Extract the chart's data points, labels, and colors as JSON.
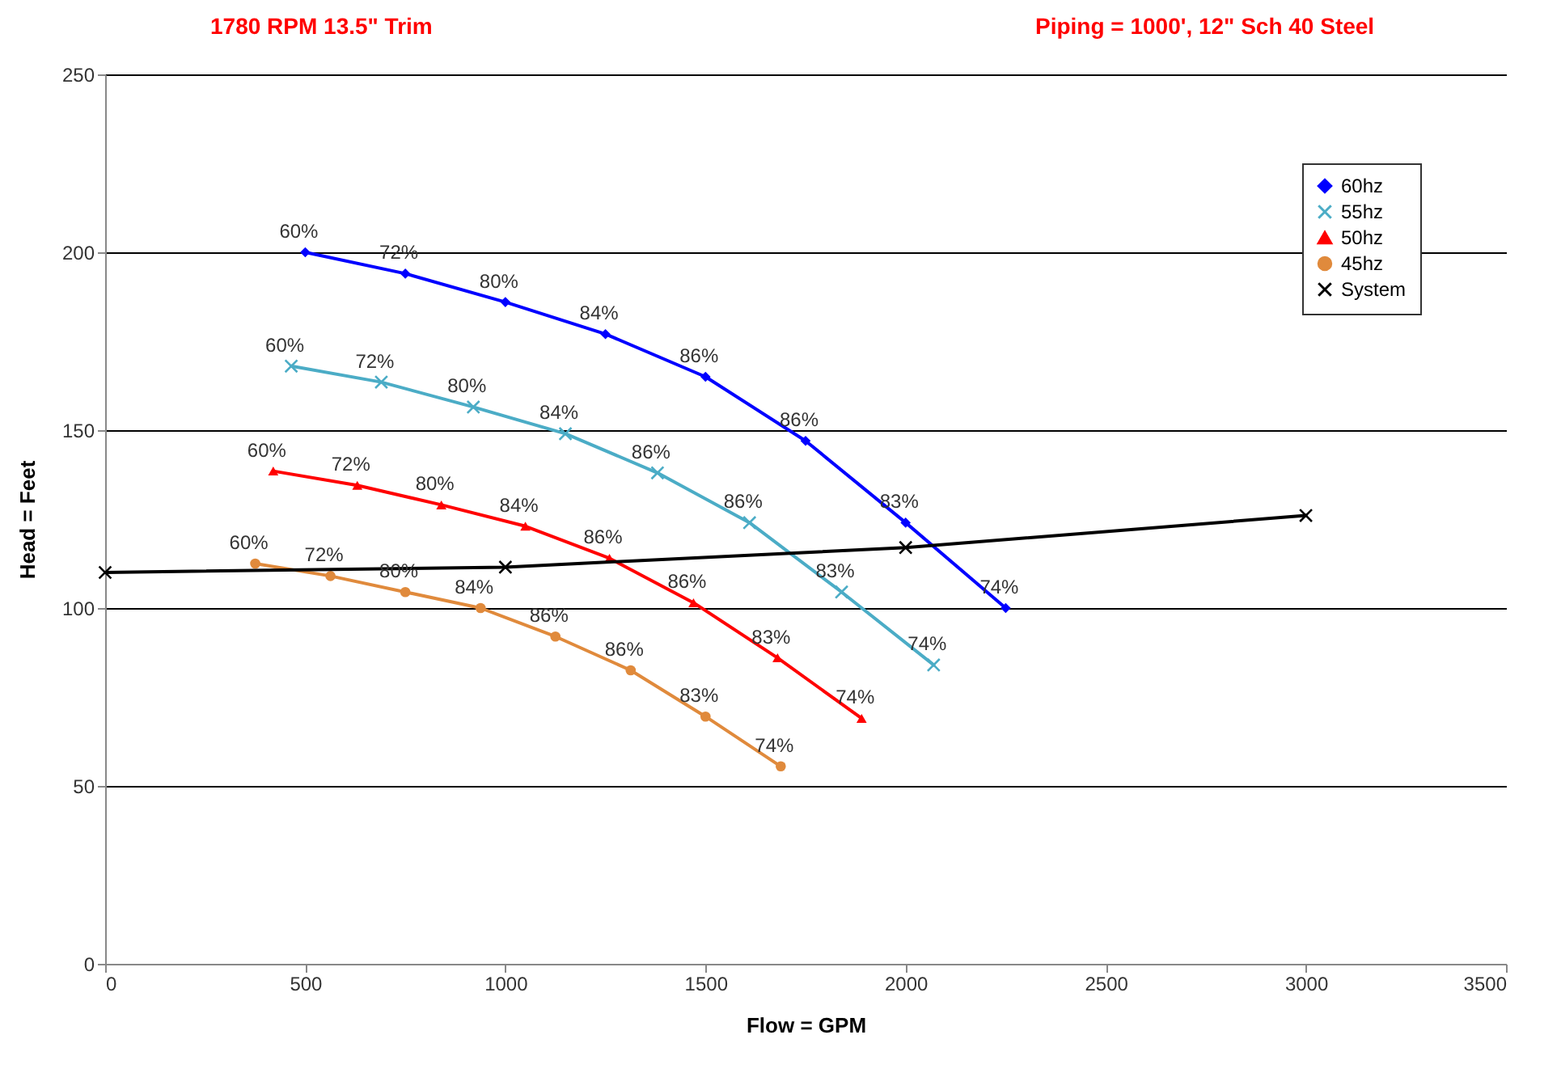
{
  "chart_data": {
    "type": "line",
    "title": "1780 RPM  13.5\" Trim",
    "subtitle": "Piping = 1000', 12\" Sch 40 Steel",
    "xlabel": "Flow = GPM",
    "ylabel": "Head = Feet",
    "xlim": [
      0,
      3500
    ],
    "xticks": [
      0,
      500,
      1000,
      1500,
      2000,
      2500,
      3000,
      3500
    ],
    "ylim": [
      0,
      250
    ],
    "yticks": [
      0,
      50,
      100,
      150,
      200,
      250
    ],
    "grid": "y",
    "legend": "top right",
    "series": [
      {
        "name": "60hz",
        "color": "#0000ff",
        "marker": "diamond",
        "x": [
          500,
          750,
          1000,
          1250,
          1500,
          1750,
          2000,
          2250
        ],
        "values": [
          200,
          194,
          186,
          177,
          165,
          147,
          124,
          100
        ]
      },
      {
        "name": "55hz",
        "color": "#4bacc6",
        "marker": "cross",
        "x": [
          465,
          690,
          920,
          1150,
          1380,
          1610,
          1840,
          2070
        ],
        "values": [
          168,
          163.5,
          156.5,
          149,
          138,
          124,
          104.5,
          84
        ]
      },
      {
        "name": "50hz",
        "color": "#ff0000",
        "marker": "triangle",
        "x": [
          420,
          630,
          840,
          1050,
          1260,
          1470,
          1680,
          1890
        ],
        "values": [
          138.5,
          134.5,
          129,
          123,
          114,
          101.5,
          86,
          69
        ]
      },
      {
        "name": "45hz",
        "color": "#e08a3c",
        "marker": "circle",
        "x": [
          375,
          563,
          750,
          938,
          1125,
          1313,
          1500,
          1688
        ],
        "values": [
          112.5,
          109,
          104.5,
          100,
          92,
          82.5,
          69.5,
          55.5
        ]
      },
      {
        "name": "System",
        "color": "#000000",
        "marker": "cross",
        "x": [
          0,
          1000,
          2000,
          3000
        ],
        "values": [
          110,
          111.5,
          117,
          126
        ]
      }
    ],
    "annotations": [
      {
        "text": "60%",
        "x": 500,
        "y": 200
      },
      {
        "text": "72%",
        "x": 750,
        "y": 194
      },
      {
        "text": "80%",
        "x": 1000,
        "y": 186
      },
      {
        "text": "84%",
        "x": 1250,
        "y": 177
      },
      {
        "text": "86%",
        "x": 1500,
        "y": 165
      },
      {
        "text": "86%",
        "x": 1750,
        "y": 147
      },
      {
        "text": "83%",
        "x": 2000,
        "y": 124
      },
      {
        "text": "74%",
        "x": 2250,
        "y": 100
      },
      {
        "text": "60%",
        "x": 465,
        "y": 168
      },
      {
        "text": "72%",
        "x": 690,
        "y": 163.5
      },
      {
        "text": "80%",
        "x": 920,
        "y": 156.5
      },
      {
        "text": "84%",
        "x": 1150,
        "y": 149
      },
      {
        "text": "86%",
        "x": 1380,
        "y": 138
      },
      {
        "text": "86%",
        "x": 1610,
        "y": 124
      },
      {
        "text": "83%",
        "x": 1840,
        "y": 104.5
      },
      {
        "text": "74%",
        "x": 2070,
        "y": 84
      },
      {
        "text": "60%",
        "x": 420,
        "y": 138.5
      },
      {
        "text": "72%",
        "x": 630,
        "y": 134.5
      },
      {
        "text": "80%",
        "x": 840,
        "y": 129
      },
      {
        "text": "84%",
        "x": 1050,
        "y": 123
      },
      {
        "text": "86%",
        "x": 1260,
        "y": 114
      },
      {
        "text": "86%",
        "x": 1470,
        "y": 101.5
      },
      {
        "text": "83%",
        "x": 1680,
        "y": 86
      },
      {
        "text": "74%",
        "x": 1890,
        "y": 69
      },
      {
        "text": "60%",
        "x": 375,
        "y": 112.5
      },
      {
        "text": "72%",
        "x": 563,
        "y": 109
      },
      {
        "text": "80%",
        "x": 750,
        "y": 104.5
      },
      {
        "text": "84%",
        "x": 938,
        "y": 100
      },
      {
        "text": "86%",
        "x": 1125,
        "y": 92
      },
      {
        "text": "86%",
        "x": 1313,
        "y": 82.5
      },
      {
        "text": "83%",
        "x": 1500,
        "y": 69.5
      },
      {
        "text": "74%",
        "x": 1688,
        "y": 55.5
      }
    ]
  }
}
